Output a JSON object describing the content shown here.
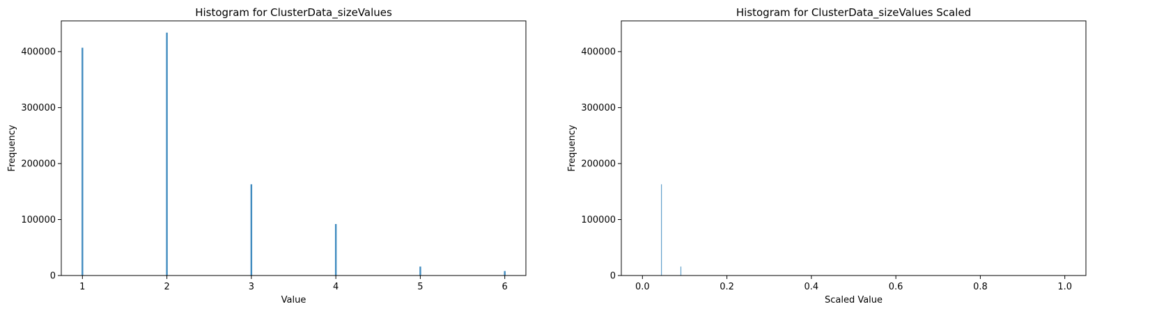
{
  "chart_data": [
    {
      "type": "bar",
      "title": "Histogram for ClusterData_sizeValues",
      "xlabel": "Value",
      "ylabel": "Frequency",
      "xlim": [
        0.75,
        6.25
      ],
      "ylim": [
        0,
        455000
      ],
      "xticks": [
        "1",
        "2",
        "3",
        "4",
        "5",
        "6"
      ],
      "xtick_values": [
        1,
        2,
        3,
        4,
        5,
        6
      ],
      "yticks": [
        "0",
        "100000",
        "200000",
        "300000",
        "400000"
      ],
      "ytick_values": [
        0,
        100000,
        200000,
        300000,
        400000
      ],
      "bar_color": "#1f77b4",
      "x": [
        1,
        2,
        3,
        4,
        5,
        6
      ],
      "values": [
        407000,
        434000,
        163000,
        92000,
        16000,
        8000
      ],
      "grid": false,
      "legend": "none"
    },
    {
      "type": "bar",
      "title": "Histogram for ClusterData_sizeValues Scaled",
      "xlabel": "Scaled Value",
      "ylabel": "Frequency",
      "xlim": [
        -0.05,
        1.05
      ],
      "ylim": [
        0,
        455000
      ],
      "xticks": [
        "0.0",
        "0.2",
        "0.4",
        "0.6",
        "0.8",
        "1.0"
      ],
      "xtick_values": [
        0.0,
        0.2,
        0.4,
        0.6,
        0.8,
        1.0
      ],
      "yticks": [
        "0",
        "100000",
        "200000",
        "300000",
        "400000"
      ],
      "ytick_values": [
        0,
        100000,
        200000,
        300000,
        400000
      ],
      "bar_color": "#1f77b4",
      "x": [
        0.045,
        0.091
      ],
      "values": [
        163000,
        16000
      ],
      "grid": false,
      "legend": "none"
    }
  ]
}
